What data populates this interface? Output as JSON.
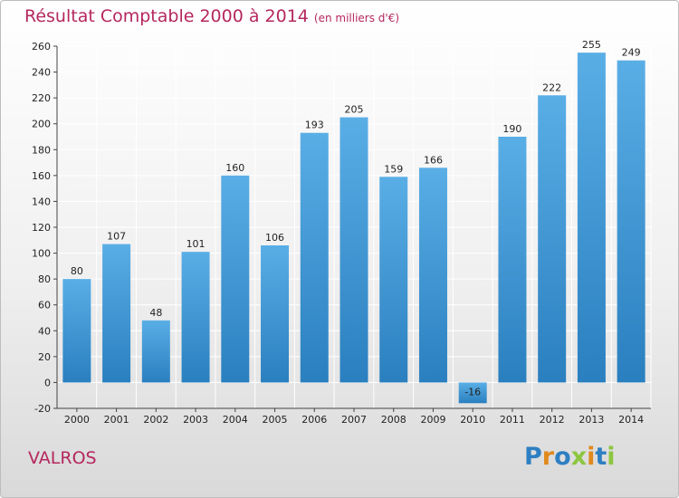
{
  "title": "Résultat Comptable 2000 à 2014",
  "subtitle": "(en milliers d'€)",
  "commune": "VALROS",
  "logo": {
    "letters": [
      {
        "ch": "P",
        "color": "#2e7fc2"
      },
      {
        "ch": "r",
        "color": "#e08a1e"
      },
      {
        "ch": "o",
        "color": "#2e7fc2"
      },
      {
        "ch": "x",
        "color": "#8cc63f"
      },
      {
        "ch": "i",
        "color": "#e08a1e"
      },
      {
        "ch": "t",
        "color": "#2e7fc2"
      },
      {
        "ch": "i",
        "color": "#8cc63f"
      }
    ]
  },
  "colors": {
    "bar_top": "#5aaee6",
    "bar_bottom": "#2a7fbf",
    "grid": "#ffffff",
    "accent": "#b5275e"
  },
  "chart_data": {
    "type": "bar",
    "title": "Résultat Comptable 2000 à 2014",
    "subtitle": "(en milliers d'€)",
    "xlabel": "",
    "ylabel": "",
    "categories": [
      "2000",
      "2001",
      "2002",
      "2003",
      "2004",
      "2005",
      "2006",
      "2007",
      "2008",
      "2009",
      "2010",
      "2011",
      "2012",
      "2013",
      "2014"
    ],
    "values": [
      80,
      107,
      48,
      101,
      160,
      106,
      193,
      205,
      159,
      166,
      -16,
      190,
      222,
      255,
      249
    ],
    "ylim": [
      -20,
      260
    ],
    "yticks": [
      -20,
      0,
      20,
      40,
      60,
      80,
      100,
      120,
      140,
      160,
      180,
      200,
      220,
      240,
      260
    ],
    "grid": true,
    "legend": "none"
  }
}
